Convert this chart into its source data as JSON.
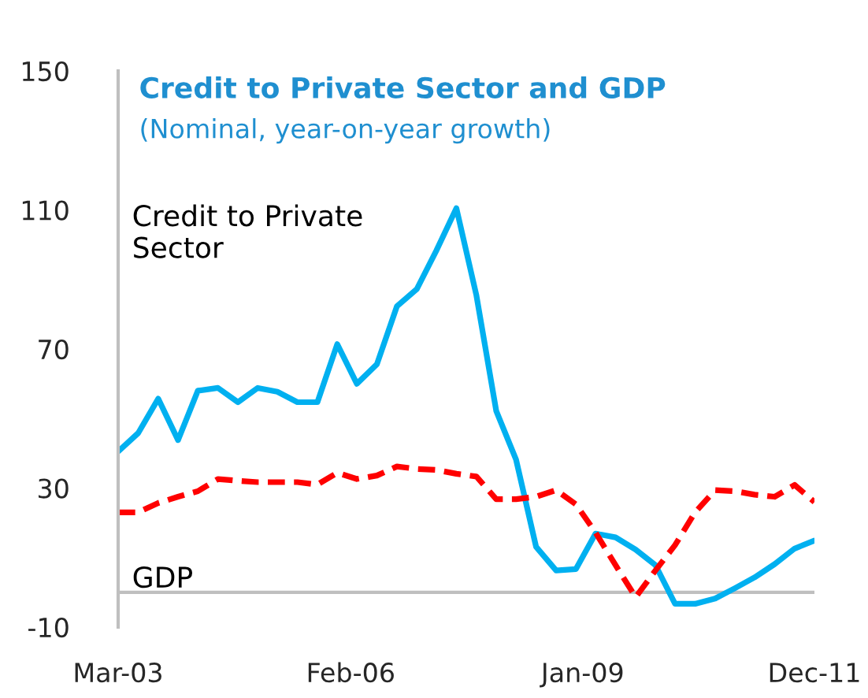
{
  "chart_data": {
    "type": "line",
    "title": "Credit to Private Sector and GDP",
    "subtitle": "(Nominal, year-on-year growth)",
    "x": [
      "2003-03",
      "2003-06",
      "2003-09",
      "2003-12",
      "2004-03",
      "2004-06",
      "2004-09",
      "2004-12",
      "2005-03",
      "2005-06",
      "2005-09",
      "2005-12",
      "2006-03",
      "2006-06",
      "2006-09",
      "2006-12",
      "2007-03",
      "2007-06",
      "2007-09",
      "2007-12",
      "2008-03",
      "2008-06",
      "2008-09",
      "2008-12",
      "2009-03",
      "2009-06",
      "2009-09",
      "2009-12",
      "2010-03",
      "2010-06",
      "2010-09",
      "2010-12",
      "2011-03",
      "2011-06",
      "2011-09",
      "2011-12"
    ],
    "series": [
      {
        "name": "Credit to Private\nSector",
        "color": "#00b0f0",
        "line_style": "solid",
        "values": [
          40.5,
          45.8,
          55.7,
          43.8,
          58,
          58.8,
          54.7,
          58.8,
          57.7,
          54.7,
          54.7,
          71.4,
          60,
          65.6,
          82.3,
          87.2,
          98.3,
          110.5,
          85.4,
          52.2,
          38.2,
          13.1,
          6.3,
          6.7,
          16.9,
          15.8,
          12.3,
          7.8,
          -3.3,
          -3.3,
          -1.8,
          1.2,
          4.3,
          8.1,
          12.6,
          14.9
        ]
      },
      {
        "name": "GDP",
        "color": "#ff0000",
        "line_style": "dashed",
        "values": [
          23,
          23,
          25.7,
          27.5,
          29.1,
          32.6,
          32.1,
          31.7,
          31.7,
          31.7,
          31,
          34.4,
          32.6,
          33.6,
          36.2,
          35.5,
          35.2,
          34.1,
          33.3,
          26.8,
          26.8,
          27.5,
          29.4,
          25.3,
          17.2,
          7.8,
          -1.4,
          6.3,
          13.6,
          23,
          29.4,
          29.1,
          28.1,
          27.5,
          30.9,
          26
        ]
      }
    ],
    "xlim": [
      "2003-03",
      "2011-12"
    ],
    "xticks": [
      {
        "value": "2003-03",
        "label": "Mar-03"
      },
      {
        "value": "2006-02",
        "label": "Feb-06"
      },
      {
        "value": "2009-01",
        "label": "Jan-09"
      },
      {
        "value": "2011-12",
        "label": "Dec-11"
      }
    ],
    "ylim": [
      -10,
      150
    ],
    "yticks": [
      -10,
      30,
      70,
      110,
      150
    ],
    "ref_lines": [
      {
        "axis": "y",
        "value": 0,
        "color": "#bfbfbf"
      }
    ],
    "grid": false,
    "legend": false
  }
}
